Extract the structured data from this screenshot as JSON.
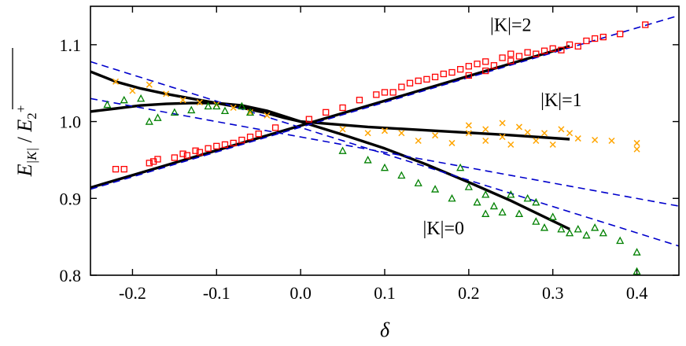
{
  "chart_data": {
    "type": "scatter",
    "xlabel": "δ",
    "ylabel": {
      "base": "E",
      "sub": "|K|",
      "sep": " / ",
      "base2": "E",
      "sub2": "2",
      "sup2": "+"
    },
    "xlim": [
      -0.25,
      0.45
    ],
    "ylim": [
      0.8,
      1.15
    ],
    "xticks": [
      -0.2,
      -0.1,
      0.0,
      0.1,
      0.2,
      0.3,
      0.4
    ],
    "xtick_labels": [
      "-0.2",
      "-0.1",
      "0.0",
      "0.1",
      "0.2",
      "0.3",
      "0.4"
    ],
    "yticks": [
      0.8,
      0.9,
      1.0,
      1.1
    ],
    "ytick_labels": [
      "0.8",
      "0.9",
      "1.0",
      "1.1"
    ],
    "grid": false,
    "annotations": [
      {
        "text": "|K|=2",
        "x": 0.25,
        "y": 1.118
      },
      {
        "text": "|K|=1",
        "x": 0.31,
        "y": 1.02
      },
      {
        "text": "|K|=0",
        "x": 0.17,
        "y": 0.853
      }
    ],
    "series": [
      {
        "marker": "square",
        "color": "#ff0000",
        "x": [
          -0.22,
          -0.21,
          -0.18,
          -0.175,
          -0.17,
          -0.15,
          -0.14,
          -0.135,
          -0.125,
          -0.12,
          -0.11,
          -0.1,
          -0.09,
          -0.08,
          -0.07,
          -0.06,
          -0.05,
          -0.03,
          0.01,
          0.03,
          0.05,
          0.07,
          0.09,
          0.1,
          0.11,
          0.12,
          0.13,
          0.14,
          0.15,
          0.16,
          0.17,
          0.18,
          0.19,
          0.2,
          0.2,
          0.21,
          0.22,
          0.22,
          0.23,
          0.24,
          0.25,
          0.25,
          0.26,
          0.27,
          0.28,
          0.29,
          0.3,
          0.31,
          0.32,
          0.33,
          0.34,
          0.35,
          0.36,
          0.38,
          0.41
        ],
        "y": [
          0.938,
          0.938,
          0.946,
          0.948,
          0.951,
          0.953,
          0.958,
          0.956,
          0.962,
          0.96,
          0.965,
          0.968,
          0.97,
          0.972,
          0.976,
          0.98,
          0.984,
          0.992,
          1.003,
          1.012,
          1.018,
          1.028,
          1.035,
          1.038,
          1.038,
          1.045,
          1.05,
          1.053,
          1.055,
          1.058,
          1.062,
          1.064,
          1.068,
          1.06,
          1.072,
          1.075,
          1.066,
          1.078,
          1.073,
          1.083,
          1.079,
          1.088,
          1.085,
          1.09,
          1.088,
          1.092,
          1.095,
          1.093,
          1.1,
          1.098,
          1.105,
          1.108,
          1.11,
          1.114,
          1.126
        ]
      },
      {
        "marker": "cross",
        "color": "#ffa500",
        "x": [
          -0.22,
          -0.2,
          -0.18,
          -0.16,
          -0.14,
          -0.12,
          -0.1,
          -0.08,
          -0.06,
          -0.04,
          0.05,
          0.08,
          0.1,
          0.12,
          0.14,
          0.16,
          0.18,
          0.2,
          0.2,
          0.22,
          0.22,
          0.24,
          0.24,
          0.25,
          0.26,
          0.27,
          0.28,
          0.29,
          0.3,
          0.31,
          0.32,
          0.33,
          0.35,
          0.37,
          0.4,
          0.4
        ],
        "y": [
          1.052,
          1.04,
          1.048,
          1.036,
          1.028,
          1.025,
          1.022,
          1.018,
          1.012,
          1.008,
          0.99,
          0.985,
          0.988,
          0.985,
          0.975,
          0.982,
          0.972,
          0.985,
          0.995,
          0.975,
          0.99,
          0.998,
          0.98,
          0.97,
          0.993,
          0.986,
          0.975,
          0.985,
          0.97,
          0.99,
          0.985,
          0.978,
          0.976,
          0.975,
          0.972,
          0.964
        ]
      },
      {
        "marker": "triangle",
        "color": "#008000",
        "x": [
          -0.23,
          -0.21,
          -0.19,
          -0.18,
          -0.17,
          -0.15,
          -0.13,
          -0.11,
          -0.1,
          -0.09,
          -0.07,
          -0.06,
          0.05,
          0.08,
          0.1,
          0.12,
          0.14,
          0.16,
          0.18,
          0.19,
          0.2,
          0.21,
          0.22,
          0.22,
          0.23,
          0.24,
          0.25,
          0.26,
          0.27,
          0.28,
          0.28,
          0.29,
          0.3,
          0.31,
          0.32,
          0.33,
          0.34,
          0.35,
          0.36,
          0.38,
          0.4,
          0.4
        ],
        "y": [
          1.022,
          1.028,
          1.03,
          1.0,
          1.005,
          1.012,
          1.015,
          1.02,
          1.02,
          1.014,
          1.02,
          1.012,
          0.962,
          0.95,
          0.94,
          0.93,
          0.92,
          0.912,
          0.9,
          0.94,
          0.915,
          0.895,
          0.905,
          0.88,
          0.89,
          0.882,
          0.905,
          0.88,
          0.9,
          0.87,
          0.895,
          0.862,
          0.876,
          0.86,
          0.855,
          0.86,
          0.852,
          0.862,
          0.855,
          0.845,
          0.83,
          0.805
        ]
      }
    ],
    "fits": [
      {
        "style": "solid",
        "color": "#000000",
        "x": [
          -0.25,
          0.32
        ],
        "y": [
          0.914,
          1.098
        ]
      },
      {
        "style": "solid",
        "color": "#000000",
        "x": [
          -0.25,
          -0.22,
          -0.19,
          -0.16,
          -0.13,
          -0.1,
          -0.07,
          -0.04,
          -0.02,
          0.0,
          0.08,
          0.16,
          0.24,
          0.32
        ],
        "y": [
          1.013,
          1.017,
          1.021,
          1.023,
          1.024,
          1.024,
          1.021,
          1.014,
          1.007,
          1.0,
          0.993,
          0.988,
          0.983,
          0.977
        ]
      },
      {
        "style": "solid",
        "color": "#000000",
        "x": [
          -0.25,
          -0.22,
          -0.19,
          -0.16,
          -0.13,
          -0.1,
          -0.07,
          -0.04,
          -0.02,
          0.0,
          0.05,
          0.1,
          0.15,
          0.2,
          0.25,
          0.32
        ],
        "y": [
          1.065,
          1.052,
          1.043,
          1.036,
          1.03,
          1.024,
          1.018,
          1.011,
          1.005,
          1.0,
          0.983,
          0.965,
          0.944,
          0.921,
          0.897,
          0.86
        ]
      },
      {
        "style": "dashed",
        "color": "#0000cc",
        "x": [
          -0.25,
          0.45
        ],
        "y": [
          0.912,
          1.138
        ]
      },
      {
        "style": "dashed",
        "color": "#0000cc",
        "x": [
          -0.25,
          0.45
        ],
        "y": [
          1.078,
          0.838
        ]
      },
      {
        "style": "dashed",
        "color": "#0000cc",
        "x": [
          -0.25,
          0.45
        ],
        "y": [
          1.03,
          0.89
        ]
      }
    ]
  }
}
